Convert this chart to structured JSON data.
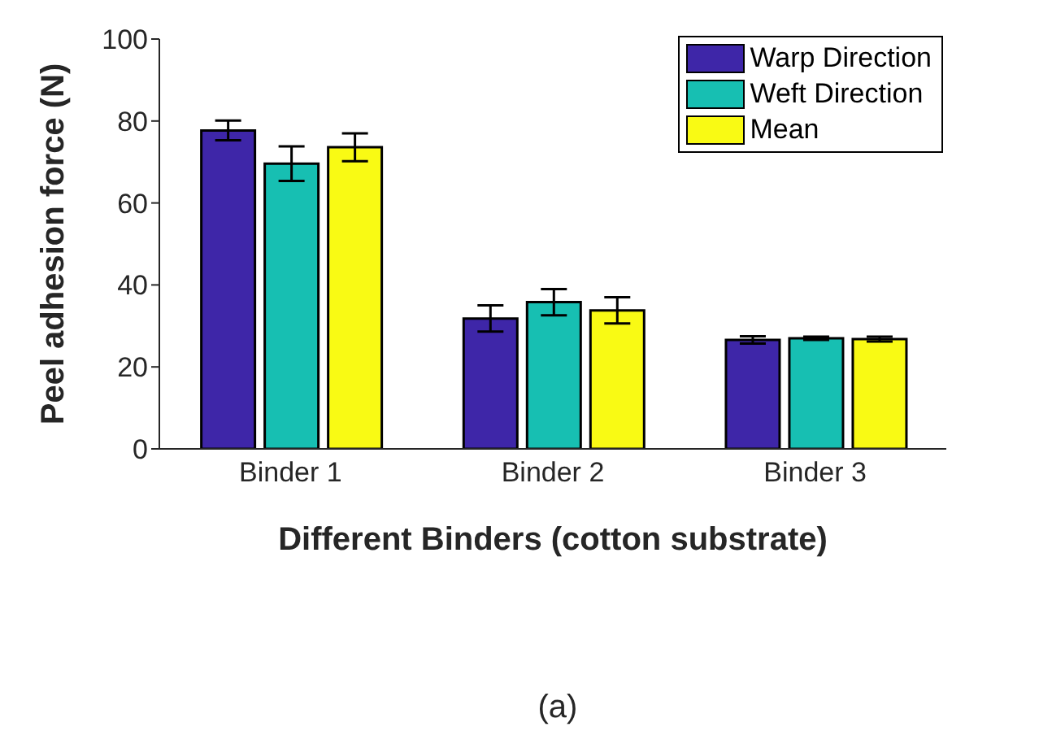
{
  "chart_data": {
    "type": "bar",
    "xlabel": "Different Binders (cotton substrate)",
    "ylabel": "Peel adhesion force (N)",
    "annotations": [
      "(a)"
    ],
    "categories": [
      "Binder 1",
      "Binder 2",
      "Binder 3"
    ],
    "series": [
      {
        "name": "Warp Direction",
        "color": "#3e26a8",
        "values": [
          77.7,
          31.8,
          26.6
        ],
        "errors": [
          2.4,
          3.2,
          0.9
        ]
      },
      {
        "name": "Weft Direction",
        "color": "#17bfb2",
        "values": [
          69.6,
          35.8,
          27.0
        ],
        "errors": [
          4.2,
          3.2,
          0.4
        ]
      },
      {
        "name": "Mean",
        "color": "#f9fa14",
        "values": [
          73.6,
          33.8,
          26.8
        ],
        "errors": [
          3.4,
          3.2,
          0.6
        ]
      }
    ],
    "ylim": [
      0,
      100
    ],
    "yticks": [
      0,
      20,
      40,
      60,
      80,
      100
    ],
    "grid": false,
    "legend": "top right"
  }
}
